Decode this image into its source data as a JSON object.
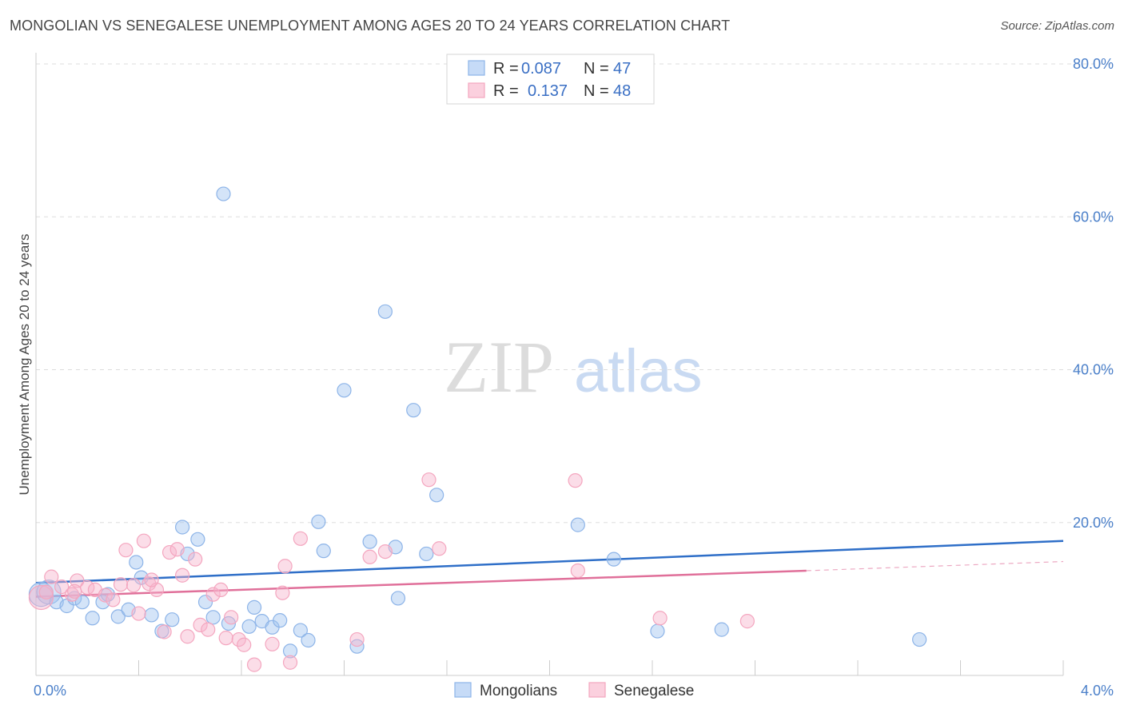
{
  "header": {
    "title": "MONGOLIAN VS SENEGALESE UNEMPLOYMENT AMONG AGES 20 TO 24 YEARS CORRELATION CHART",
    "source": "Source: ZipAtlas.com"
  },
  "watermark": {
    "zip": "ZIP",
    "atlas": "atlas"
  },
  "chart_data": {
    "type": "scatter",
    "title": "MONGOLIAN VS SENEGALESE UNEMPLOYMENT AMONG AGES 20 TO 24 YEARS CORRELATION CHART",
    "xlabel": "",
    "ylabel": "Unemployment Among Ages 20 to 24 years",
    "xlim": [
      0,
      4.0
    ],
    "ylim": [
      0,
      80
    ],
    "x_tick_labels": {
      "left": "0.0%",
      "right": "4.0%"
    },
    "y_tick_labels": [
      "20.0%",
      "40.0%",
      "60.0%",
      "80.0%"
    ],
    "y_tick_values": [
      20,
      40,
      60,
      80
    ],
    "legend_box": [
      {
        "r_label": "R =",
        "r_value": "0.087",
        "n_label": "N =",
        "n_value": "47"
      },
      {
        "r_label": "R =",
        "r_value": "0.137",
        "n_label": "N =",
        "n_value": "48"
      }
    ],
    "series": [
      {
        "name": "Mongolians",
        "color": "#8db4e8",
        "line_color": "#2f6fc8",
        "trend": {
          "x": [
            0.0,
            4.0
          ],
          "y": [
            12.1,
            17.6
          ]
        },
        "points": [
          {
            "x": 0.02,
            "y": 10.6,
            "big": true
          },
          {
            "x": 0.05,
            "y": 10.9,
            "big": true
          },
          {
            "x": 0.08,
            "y": 9.6
          },
          {
            "x": 0.12,
            "y": 9.1
          },
          {
            "x": 0.15,
            "y": 10.1
          },
          {
            "x": 0.18,
            "y": 9.6
          },
          {
            "x": 0.22,
            "y": 7.5
          },
          {
            "x": 0.26,
            "y": 9.6
          },
          {
            "x": 0.28,
            "y": 10.6
          },
          {
            "x": 0.32,
            "y": 7.7
          },
          {
            "x": 0.36,
            "y": 8.6
          },
          {
            "x": 0.39,
            "y": 14.8
          },
          {
            "x": 0.41,
            "y": 12.8
          },
          {
            "x": 0.45,
            "y": 7.9
          },
          {
            "x": 0.49,
            "y": 5.8
          },
          {
            "x": 0.53,
            "y": 7.3
          },
          {
            "x": 0.57,
            "y": 19.4
          },
          {
            "x": 0.59,
            "y": 15.9
          },
          {
            "x": 0.63,
            "y": 17.8
          },
          {
            "x": 0.66,
            "y": 9.6
          },
          {
            "x": 0.69,
            "y": 7.6
          },
          {
            "x": 0.73,
            "y": 63.0
          },
          {
            "x": 0.75,
            "y": 6.8
          },
          {
            "x": 0.83,
            "y": 6.4
          },
          {
            "x": 0.85,
            "y": 8.9
          },
          {
            "x": 0.88,
            "y": 7.1
          },
          {
            "x": 0.92,
            "y": 6.3
          },
          {
            "x": 0.95,
            "y": 7.2
          },
          {
            "x": 0.99,
            "y": 3.2
          },
          {
            "x": 1.03,
            "y": 5.9
          },
          {
            "x": 1.06,
            "y": 4.6
          },
          {
            "x": 1.1,
            "y": 20.1
          },
          {
            "x": 1.12,
            "y": 16.3
          },
          {
            "x": 1.2,
            "y": 37.3
          },
          {
            "x": 1.25,
            "y": 3.8
          },
          {
            "x": 1.3,
            "y": 17.5
          },
          {
            "x": 1.36,
            "y": 47.6
          },
          {
            "x": 1.4,
            "y": 16.8
          },
          {
            "x": 1.41,
            "y": 10.1
          },
          {
            "x": 1.47,
            "y": 34.7
          },
          {
            "x": 1.52,
            "y": 15.9
          },
          {
            "x": 1.56,
            "y": 23.6
          },
          {
            "x": 2.11,
            "y": 19.7
          },
          {
            "x": 2.25,
            "y": 15.2
          },
          {
            "x": 2.42,
            "y": 5.8
          },
          {
            "x": 2.67,
            "y": 6.0
          },
          {
            "x": 3.44,
            "y": 4.7
          }
        ]
      },
      {
        "name": "Senegalese",
        "color": "#f4a6bf",
        "line_color": "#e0709a",
        "trend": {
          "x": [
            0.0,
            3.0
          ],
          "y": [
            10.3,
            13.7
          ]
        },
        "trend_dashed": {
          "x": [
            3.0,
            4.0
          ],
          "y": [
            13.7,
            14.9
          ]
        },
        "points": [
          {
            "x": 0.02,
            "y": 10.2,
            "big": true
          },
          {
            "x": 0.04,
            "y": 10.9
          },
          {
            "x": 0.06,
            "y": 12.9
          },
          {
            "x": 0.1,
            "y": 11.6
          },
          {
            "x": 0.14,
            "y": 10.6
          },
          {
            "x": 0.16,
            "y": 12.4
          },
          {
            "x": 0.2,
            "y": 11.5
          },
          {
            "x": 0.23,
            "y": 11.2
          },
          {
            "x": 0.27,
            "y": 10.5
          },
          {
            "x": 0.3,
            "y": 9.9
          },
          {
            "x": 0.33,
            "y": 11.9
          },
          {
            "x": 0.35,
            "y": 16.4
          },
          {
            "x": 0.38,
            "y": 11.8
          },
          {
            "x": 0.4,
            "y": 8.1
          },
          {
            "x": 0.42,
            "y": 17.6
          },
          {
            "x": 0.44,
            "y": 12.0
          },
          {
            "x": 0.47,
            "y": 11.2
          },
          {
            "x": 0.5,
            "y": 5.7
          },
          {
            "x": 0.52,
            "y": 16.1
          },
          {
            "x": 0.55,
            "y": 16.5
          },
          {
            "x": 0.57,
            "y": 13.1
          },
          {
            "x": 0.59,
            "y": 5.1
          },
          {
            "x": 0.62,
            "y": 15.2
          },
          {
            "x": 0.64,
            "y": 6.6
          },
          {
            "x": 0.67,
            "y": 6.0
          },
          {
            "x": 0.69,
            "y": 10.6
          },
          {
            "x": 0.72,
            "y": 11.2
          },
          {
            "x": 0.74,
            "y": 4.9
          },
          {
            "x": 0.76,
            "y": 7.6
          },
          {
            "x": 0.79,
            "y": 4.7
          },
          {
            "x": 0.81,
            "y": 4.0
          },
          {
            "x": 0.85,
            "y": 1.4
          },
          {
            "x": 0.92,
            "y": 4.1
          },
          {
            "x": 0.97,
            "y": 14.3
          },
          {
            "x": 0.99,
            "y": 1.7
          },
          {
            "x": 1.03,
            "y": 17.9
          },
          {
            "x": 1.25,
            "y": 4.7
          },
          {
            "x": 1.3,
            "y": 15.5
          },
          {
            "x": 1.36,
            "y": 16.2
          },
          {
            "x": 1.53,
            "y": 25.6
          },
          {
            "x": 1.57,
            "y": 16.6
          },
          {
            "x": 2.1,
            "y": 25.5
          },
          {
            "x": 2.11,
            "y": 13.7
          },
          {
            "x": 2.43,
            "y": 7.5
          },
          {
            "x": 2.77,
            "y": 7.1
          },
          {
            "x": 0.15,
            "y": 11.0
          },
          {
            "x": 0.45,
            "y": 12.5
          },
          {
            "x": 0.96,
            "y": 10.8
          }
        ]
      }
    ]
  }
}
